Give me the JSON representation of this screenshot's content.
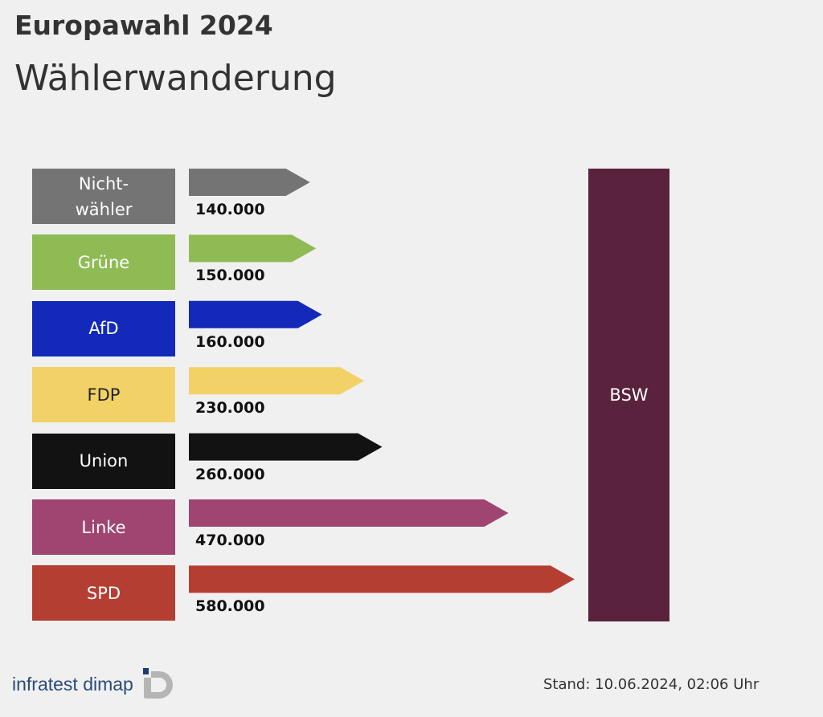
{
  "header": {
    "title": "Europawahl 2024",
    "subtitle": "Wählerwanderung"
  },
  "chart_data": {
    "type": "bar",
    "title": "Wählerwanderung",
    "target": "BSW",
    "target_color": "#5a223d",
    "categories": [
      "Nicht-wähler",
      "Grüne",
      "AfD",
      "FDP",
      "Union",
      "Linke",
      "SPD"
    ],
    "labels": [
      "Nicht-\nwähler",
      "Grüne",
      "AfD",
      "FDP",
      "Union",
      "Linke",
      "SPD"
    ],
    "values": [
      140000,
      150000,
      160000,
      230000,
      260000,
      470000,
      580000
    ],
    "value_labels": [
      "140.000",
      "150.000",
      "160.000",
      "230.000",
      "260.000",
      "470.000",
      "580.000"
    ],
    "colors": [
      "#747474",
      "#8fbb55",
      "#1329b9",
      "#f2d266",
      "#121212",
      "#a04472",
      "#b53e33"
    ],
    "label_text_colors": [
      "#ffffff",
      "#ffffff",
      "#ffffff",
      "#222222",
      "#ffffff",
      "#ffffff",
      "#ffffff"
    ]
  },
  "footer": {
    "logo": "infratest dimap",
    "stand": "Stand:  10.06.2024, 02:06 Uhr"
  }
}
